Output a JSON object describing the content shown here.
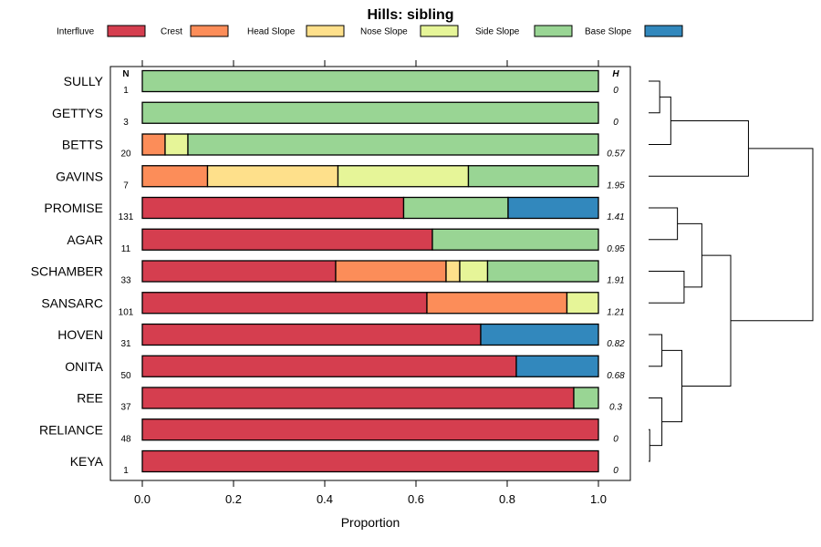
{
  "chart_data": {
    "type": "bar",
    "orientation": "horizontal",
    "stacked": true,
    "title": "Hills: sibling",
    "xlabel": "Proportion",
    "xlim": [
      0,
      1
    ],
    "x_ticks": [
      "0.0",
      "0.2",
      "0.4",
      "0.6",
      "0.8",
      "1.0"
    ],
    "n_header": "N",
    "h_header": "H",
    "legend_position": "top",
    "series": [
      {
        "name": "Interfluve",
        "color": "#d53e4f"
      },
      {
        "name": "Crest",
        "color": "#fc8d59"
      },
      {
        "name": "Head Slope",
        "color": "#fee08b"
      },
      {
        "name": "Nose Slope",
        "color": "#e6f598"
      },
      {
        "name": "Side Slope",
        "color": "#99d594"
      },
      {
        "name": "Base Slope",
        "color": "#3288bd"
      }
    ],
    "categories": [
      {
        "name": "SULLY",
        "n": "1",
        "h": "0",
        "values": [
          0,
          0,
          0,
          0,
          1,
          0
        ]
      },
      {
        "name": "GETTYS",
        "n": "3",
        "h": "0",
        "values": [
          0,
          0,
          0,
          0,
          1,
          0
        ]
      },
      {
        "name": "BETTS",
        "n": "20",
        "h": "0.57",
        "values": [
          0,
          0.05,
          0,
          0.05,
          0.9,
          0
        ]
      },
      {
        "name": "GAVINS",
        "n": "7",
        "h": "1.95",
        "values": [
          0,
          0.143,
          0.286,
          0.286,
          0.285,
          0
        ]
      },
      {
        "name": "PROMISE",
        "n": "131",
        "h": "1.41",
        "values": [
          0.573,
          0,
          0,
          0,
          0.229,
          0.198
        ]
      },
      {
        "name": "AGAR",
        "n": "11",
        "h": "0.95",
        "values": [
          0.636,
          0,
          0,
          0,
          0.364,
          0
        ]
      },
      {
        "name": "SCHAMBER",
        "n": "33",
        "h": "1.91",
        "values": [
          0.424,
          0.242,
          0.03,
          0.061,
          0.243,
          0
        ]
      },
      {
        "name": "SANSARC",
        "n": "101",
        "h": "1.21",
        "values": [
          0.624,
          0.307,
          0,
          0.069,
          0,
          0
        ]
      },
      {
        "name": "HOVEN",
        "n": "31",
        "h": "0.82",
        "values": [
          0.742,
          0,
          0,
          0,
          0,
          0.258
        ]
      },
      {
        "name": "ONITA",
        "n": "50",
        "h": "0.68",
        "values": [
          0.82,
          0,
          0,
          0,
          0,
          0.18
        ]
      },
      {
        "name": "REE",
        "n": "37",
        "h": "0.3",
        "values": [
          0.946,
          0,
          0,
          0,
          0.054,
          0
        ]
      },
      {
        "name": "RELIANCE",
        "n": "48",
        "h": "0",
        "values": [
          1,
          0,
          0,
          0,
          0,
          0
        ]
      },
      {
        "name": "KEYA",
        "n": "1",
        "h": "0",
        "values": [
          1,
          0,
          0,
          0,
          0,
          0
        ]
      }
    ],
    "dendrogram": {
      "merges": [
        {
          "a": 0,
          "b": 1,
          "height": 0.05
        },
        {
          "a": -1,
          "b": 2,
          "height": 0.1
        },
        {
          "a": -2,
          "b": 3,
          "height": 0.45
        },
        {
          "a": 4,
          "b": 5,
          "height": 0.13
        },
        {
          "a": 6,
          "b": 7,
          "height": 0.16
        },
        {
          "a": -4,
          "b": -5,
          "height": 0.24
        },
        {
          "a": 8,
          "b": 9,
          "height": 0.06
        },
        {
          "a": 11,
          "b": 12,
          "height": 0.005
        },
        {
          "a": 10,
          "b": -8,
          "height": 0.06
        },
        {
          "a": -7,
          "b": -9,
          "height": 0.15
        },
        {
          "a": -6,
          "b": -10,
          "height": 0.37
        },
        {
          "a": -3,
          "b": -11,
          "height": 0.74
        }
      ],
      "max_height": 0.74
    }
  }
}
